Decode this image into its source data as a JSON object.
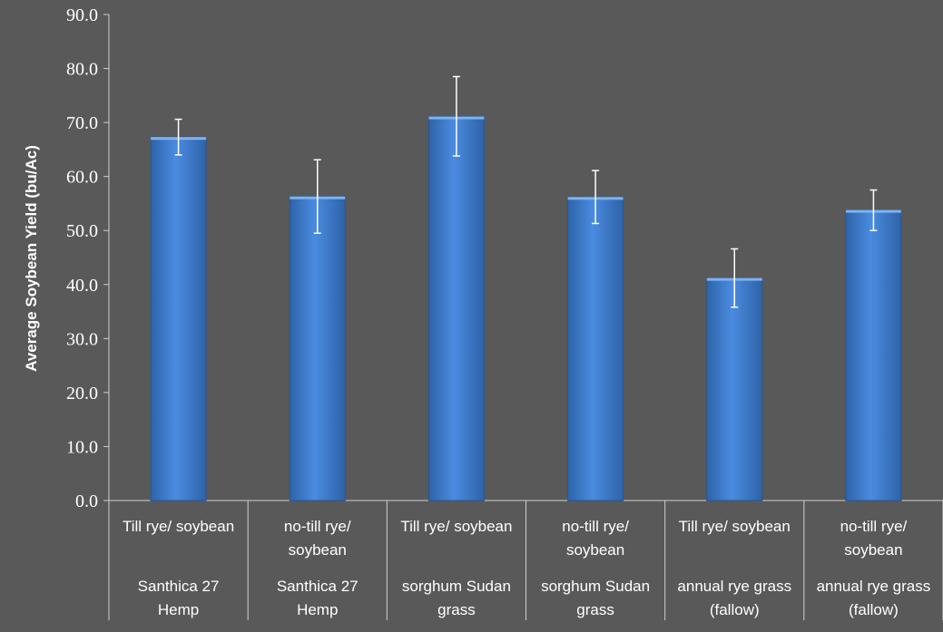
{
  "chart_data": {
    "type": "bar",
    "title": "",
    "ylabel": "Average Soybean Yield (bu/Ac)",
    "xlabel": "",
    "ylim": [
      0,
      90
    ],
    "yticks": [
      "0.0",
      "10.0",
      "20.0",
      "30.0",
      "40.0",
      "50.0",
      "60.0",
      "70.0",
      "80.0",
      "90.0"
    ],
    "grid": false,
    "legend": "none",
    "categories": [
      {
        "inner": [
          "Till rye/ soybean"
        ],
        "outer": [
          "Santhica 27",
          "Hemp"
        ]
      },
      {
        "inner": [
          "no-till rye/",
          "soybean"
        ],
        "outer": [
          "Santhica 27",
          "Hemp"
        ]
      },
      {
        "inner": [
          "Till rye/ soybean"
        ],
        "outer": [
          "sorghum Sudan",
          "grass"
        ]
      },
      {
        "inner": [
          "no-till rye/",
          "soybean"
        ],
        "outer": [
          "sorghum Sudan",
          "grass"
        ]
      },
      {
        "inner": [
          "Till rye/ soybean"
        ],
        "outer": [
          "annual rye grass",
          "(fallow)"
        ]
      },
      {
        "inner": [
          "no-till rye/",
          "soybean"
        ],
        "outer": [
          "annual rye grass",
          "(fallow)"
        ]
      }
    ],
    "values": [
      67.3,
      56.3,
      71.1,
      56.2,
      41.2,
      53.8
    ],
    "error_low": [
      64.0,
      49.5,
      63.8,
      51.3,
      35.8,
      50.0
    ],
    "error_high": [
      70.6,
      63.1,
      78.5,
      61.1,
      46.6,
      57.5
    ],
    "colors": {
      "bar": "#3a78c9",
      "bar_light": "#5a9ae6",
      "bar_dark": "#2b5d9e",
      "background": "#595959",
      "axis": "#cfcfcf",
      "text": "#ffffff"
    }
  }
}
